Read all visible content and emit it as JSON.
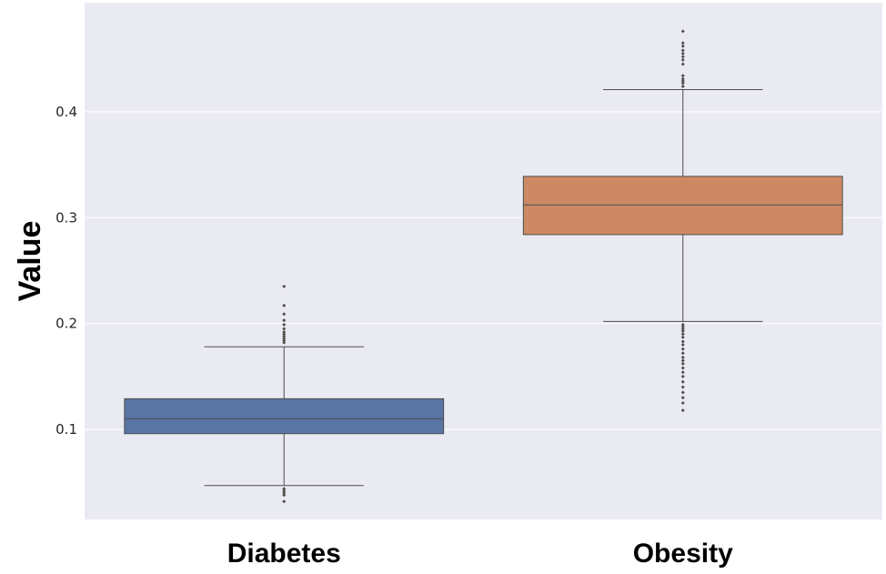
{
  "chart_data": {
    "type": "box",
    "categories": [
      "Diabetes",
      "Obesity"
    ],
    "xlabel": "",
    "ylabel": "Value",
    "ylim": [
      0.015,
      0.503
    ],
    "yticks": [
      0.1,
      0.2,
      0.3,
      0.4
    ],
    "ytick_labels": [
      "0.1",
      "0.2",
      "0.3",
      "0.4"
    ],
    "grid": true,
    "colors": {
      "background": "#EAEAF2",
      "grid": "#FFFFFF",
      "line": "#4D4D4D",
      "Diabetes": "#5875A4",
      "Obesity": "#CC8963"
    },
    "boxes": [
      {
        "category": "Diabetes",
        "q1": 0.096,
        "median": 0.11,
        "q3": 0.129,
        "whisker_low": 0.047,
        "whisker_high": 0.178,
        "outliers_high": [
          0.182,
          0.184,
          0.186,
          0.188,
          0.19,
          0.192,
          0.195,
          0.199,
          0.203,
          0.209,
          0.217,
          0.235
        ],
        "outliers_low": [
          0.044,
          0.042,
          0.04,
          0.038,
          0.032
        ]
      },
      {
        "category": "Obesity",
        "q1": 0.284,
        "median": 0.312,
        "q3": 0.339,
        "whisker_low": 0.202,
        "whisker_high": 0.421,
        "outliers_high": [
          0.424,
          0.427,
          0.429,
          0.431,
          0.434,
          0.445,
          0.449,
          0.452,
          0.455,
          0.458,
          0.462,
          0.465,
          0.476
        ],
        "outliers_low": [
          0.199,
          0.197,
          0.195,
          0.193,
          0.19,
          0.187,
          0.183,
          0.18,
          0.176,
          0.172,
          0.168,
          0.165,
          0.162,
          0.158,
          0.154,
          0.15,
          0.145,
          0.14,
          0.135,
          0.13,
          0.125,
          0.118
        ]
      }
    ]
  }
}
